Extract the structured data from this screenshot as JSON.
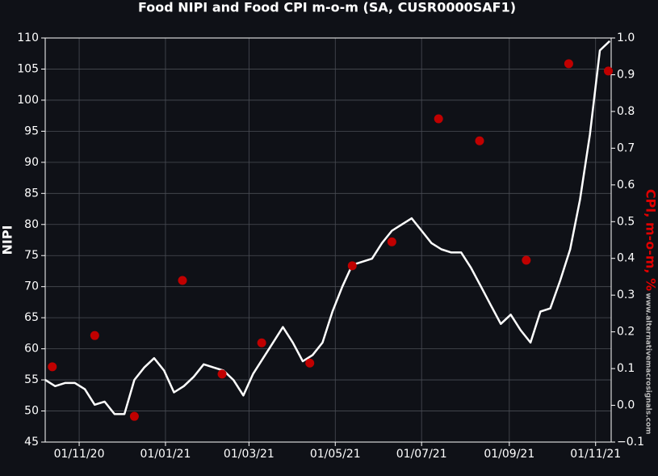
{
  "chart_data": {
    "type": "line",
    "title": "Food NIPI and Food CPI m-o-m (SA, CUSR0000SAF1)",
    "ylabel": "NIPI",
    "y2label": "CPI, m-o-m, %",
    "watermark": "www.alternativemacrosignals.com",
    "xlim": [
      "2020-10-08",
      "2021-11-12"
    ],
    "xticks": [
      {
        "value": "2020-11-01",
        "label": "01/11/20"
      },
      {
        "value": "2021-01-01",
        "label": "01/01/21"
      },
      {
        "value": "2021-03-01",
        "label": "01/03/21"
      },
      {
        "value": "2021-05-01",
        "label": "01/05/21"
      },
      {
        "value": "2021-07-01",
        "label": "01/07/21"
      },
      {
        "value": "2021-09-01",
        "label": "01/09/21"
      },
      {
        "value": "2021-11-01",
        "label": "01/11/21"
      }
    ],
    "ylim": [
      45,
      110
    ],
    "yticks": [
      45,
      50,
      55,
      60,
      65,
      70,
      75,
      80,
      85,
      90,
      95,
      100,
      105,
      110
    ],
    "y2lim": [
      -0.1,
      1.0
    ],
    "y2ticks": [
      {
        "value": -0.1,
        "label": "−0.1"
      },
      {
        "value": 0.0,
        "label": "0.0"
      },
      0.1,
      0.2,
      0.3,
      0.4,
      0.5,
      0.6,
      0.7,
      0.8,
      0.9,
      {
        "value": 1.0,
        "label": "1.0"
      }
    ],
    "grid": true,
    "series": [
      {
        "name": "NIPI",
        "type": "line",
        "color": "#ffffff",
        "x": [
          "2020-10-08",
          "2020-10-15",
          "2020-10-22",
          "2020-10-29",
          "2020-11-05",
          "2020-11-12",
          "2020-11-19",
          "2020-11-26",
          "2020-12-03",
          "2020-12-10",
          "2020-12-17",
          "2020-12-24",
          "2020-12-31",
          "2021-01-07",
          "2021-01-14",
          "2021-01-21",
          "2021-01-28",
          "2021-02-04",
          "2021-02-11",
          "2021-02-18",
          "2021-02-25",
          "2021-03-04",
          "2021-03-11",
          "2021-03-18",
          "2021-03-25",
          "2021-04-01",
          "2021-04-08",
          "2021-04-15",
          "2021-04-22",
          "2021-04-29",
          "2021-05-06",
          "2021-05-13",
          "2021-05-20",
          "2021-05-27",
          "2021-06-03",
          "2021-06-10",
          "2021-06-17",
          "2021-06-24",
          "2021-07-01",
          "2021-07-08",
          "2021-07-15",
          "2021-07-22",
          "2021-07-29",
          "2021-08-05",
          "2021-08-12",
          "2021-08-19",
          "2021-08-26",
          "2021-09-02",
          "2021-09-09",
          "2021-09-16",
          "2021-09-23",
          "2021-09-30",
          "2021-10-07",
          "2021-10-14",
          "2021-10-21",
          "2021-10-28",
          "2021-11-04",
          "2021-11-11"
        ],
        "values": [
          55,
          54,
          54.5,
          54.5,
          53.5,
          51,
          51.5,
          49.5,
          49.5,
          55,
          57,
          58.5,
          56.5,
          53,
          54,
          55.5,
          57.5,
          57,
          56.5,
          55,
          52.5,
          56,
          58.5,
          61,
          63.5,
          61,
          58,
          59,
          61,
          66,
          70,
          73.5,
          74,
          74.5,
          77,
          79,
          80,
          81,
          79,
          77,
          76,
          75.5,
          75.5,
          73,
          70,
          67,
          64,
          65.5,
          63,
          61,
          66,
          66.5,
          71,
          76,
          84,
          94.5,
          108,
          109.5
        ]
      },
      {
        "name": "CPI",
        "type": "scatter",
        "axis": "y2",
        "color": "#c00000",
        "x": [
          "2020-10-13",
          "2020-11-12",
          "2020-12-10",
          "2021-01-13",
          "2021-02-10",
          "2021-03-10",
          "2021-04-13",
          "2021-05-13",
          "2021-06-10",
          "2021-07-13",
          "2021-08-11",
          "2021-09-13",
          "2021-10-13",
          "2021-11-10"
        ],
        "values": [
          0.105,
          0.19,
          -0.03,
          0.34,
          0.085,
          0.17,
          0.115,
          0.38,
          0.445,
          0.78,
          0.72,
          0.395,
          0.93,
          0.91
        ]
      }
    ]
  }
}
